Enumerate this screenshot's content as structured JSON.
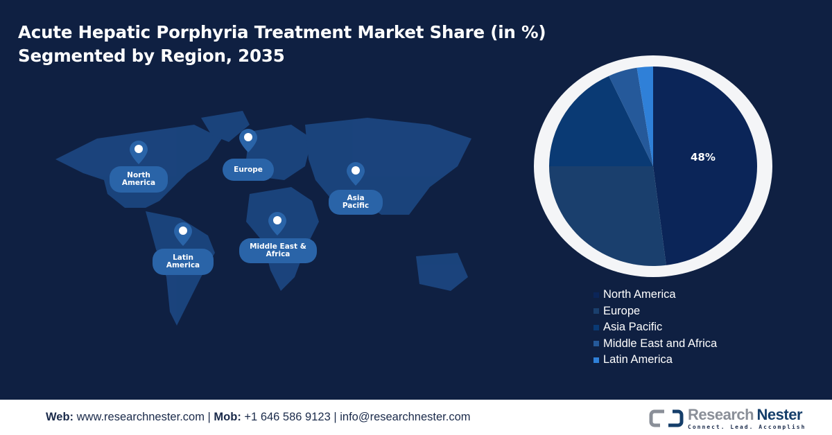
{
  "title_line1": "Acute Hepatic Porphyria Treatment Market Share (in %)",
  "title_line2": "Segmented by Region, 2035",
  "map_labels": {
    "north_america": "North America",
    "europe": "Europe",
    "asia_pacific": "Asia Pacific",
    "latin_america": "Latin America",
    "middle_east_africa": "Middle East & Africa"
  },
  "chart_data": {
    "type": "pie",
    "categories": [
      "North America",
      "Europe",
      "Asia Pacific",
      "Middle East and Africa",
      "Latin America"
    ],
    "values": [
      48,
      27,
      18,
      4.5,
      2.5
    ],
    "colors": [
      "#0b2558",
      "#1a3f6d",
      "#0a3a74",
      "#25599a",
      "#2f80d8"
    ],
    "data_labels": [
      "48%",
      "",
      "",
      "",
      ""
    ],
    "legend_placement": "bottom-right"
  },
  "footer": {
    "web_label": "Web:",
    "web": "www.researchnester.com",
    "mob_label": "Mob:",
    "mob": "+1 646 586 9123",
    "email": "info@researchnester.com",
    "brand_part1": "Research",
    "brand_part2": "Nester",
    "tagline": "Connect. Lead. Accomplish"
  }
}
